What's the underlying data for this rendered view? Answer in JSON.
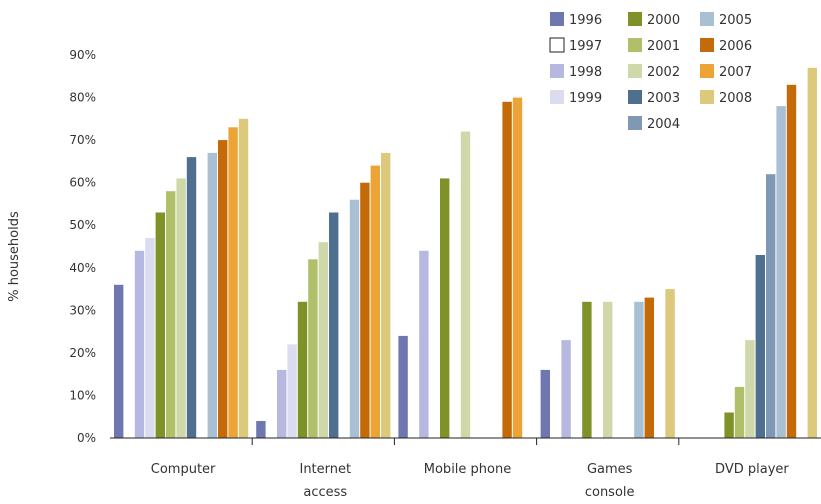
{
  "chart_data": {
    "type": "bar",
    "ylabel": "% households",
    "ylim": [
      0,
      90
    ],
    "yticks": [
      "0%",
      "10%",
      "20%",
      "30%",
      "40%",
      "50%",
      "60%",
      "70%",
      "80%",
      "90%"
    ],
    "categories": [
      "Computer",
      "Internet access",
      "Mobile phone",
      "Games console",
      "DVD player"
    ],
    "category_labels": [
      [
        "Computer"
      ],
      [
        "Internet",
        "access"
      ],
      [
        "Mobile phone"
      ],
      [
        "Games",
        "console"
      ],
      [
        "DVD player"
      ]
    ],
    "legend_position": "top-right",
    "series": [
      {
        "name": "1996",
        "color": "#6f77b0",
        "values": [
          36,
          4,
          24,
          16,
          0
        ]
      },
      {
        "name": "1997",
        "color": "#ffffff",
        "values": [
          null,
          null,
          null,
          null,
          null
        ]
      },
      {
        "name": "1998",
        "color": "#b7b8e0",
        "values": [
          44,
          16,
          44,
          23,
          0
        ]
      },
      {
        "name": "1999",
        "color": "#dcdcf0",
        "values": [
          47,
          22,
          null,
          null,
          null
        ]
      },
      {
        "name": "2000",
        "color": "#7e9228",
        "values": [
          53,
          32,
          61,
          32,
          6
        ]
      },
      {
        "name": "2001",
        "color": "#b0bf6a",
        "values": [
          58,
          42,
          null,
          null,
          12
        ]
      },
      {
        "name": "2002",
        "color": "#cfd8a8",
        "values": [
          61,
          46,
          72,
          32,
          23
        ]
      },
      {
        "name": "2003",
        "color": "#4f6f8f",
        "values": [
          66,
          53,
          null,
          null,
          43
        ]
      },
      {
        "name": "2004",
        "color": "#7f99b5",
        "values": [
          null,
          null,
          null,
          null,
          62
        ]
      },
      {
        "name": "2005",
        "color": "#a9bfd3",
        "values": [
          67,
          56,
          null,
          32,
          78
        ]
      },
      {
        "name": "2006",
        "color": "#c46a08",
        "values": [
          70,
          60,
          79,
          33,
          83
        ]
      },
      {
        "name": "2007",
        "color": "#eda437",
        "values": [
          73,
          64,
          80,
          null,
          null
        ]
      },
      {
        "name": "2008",
        "color": "#dcc97c",
        "values": [
          75,
          67,
          null,
          35,
          87
        ]
      }
    ]
  }
}
